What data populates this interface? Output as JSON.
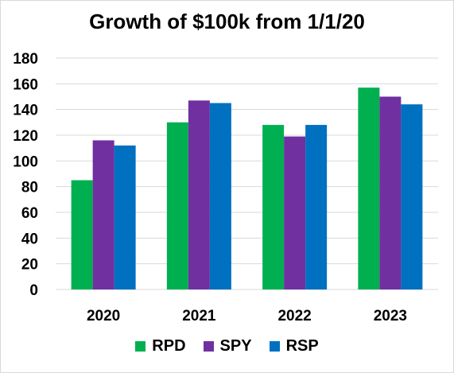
{
  "chart_data": {
    "type": "bar",
    "title": "Growth of $100k from 1/1/20",
    "categories": [
      "2020",
      "2021",
      "2022",
      "2023"
    ],
    "series": [
      {
        "name": "RPD",
        "color": "#00b050",
        "values": [
          85,
          130,
          128,
          157
        ]
      },
      {
        "name": "SPY",
        "color": "#7030a0",
        "values": [
          116,
          147,
          119,
          150
        ]
      },
      {
        "name": "RSP",
        "color": "#0070c0",
        "values": [
          112,
          145,
          128,
          144
        ]
      }
    ],
    "ylim": [
      0,
      180
    ],
    "yticks": [
      "0",
      "20",
      "40",
      "60",
      "80",
      "100",
      "120",
      "140",
      "160",
      "180"
    ],
    "grid": true,
    "legend_position": "bottom"
  }
}
